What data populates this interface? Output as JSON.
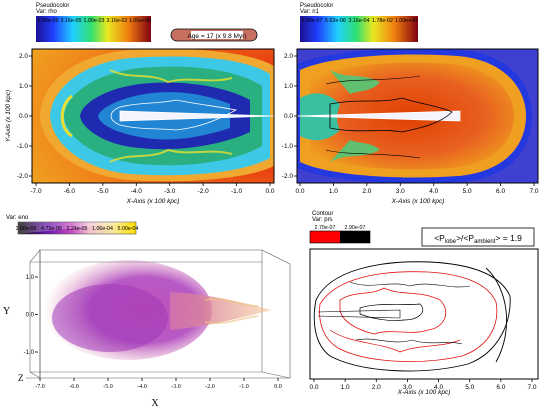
{
  "colorbars": {
    "rho": {
      "title": "Pseudocolor",
      "var": "Var: rho",
      "ticks": [
        "1.00e-06",
        "3.16e-05",
        "1.00e-03",
        "3.16e-02",
        "1.00e+00"
      ]
    },
    "n1": {
      "title": "Pseudocolor",
      "var": "Var: n1",
      "ticks": [
        "1.00e-07",
        "5.62e-06",
        "3.16e-04",
        "1.78e-02",
        "1.00e+00"
      ]
    },
    "eno": {
      "var": "Var: eno",
      "ticks": [
        "1.00e-06",
        "4.73e-06",
        "2.24e-05",
        "1.06e-04",
        "5.00e-04"
      ]
    },
    "prs": {
      "title": "Contour",
      "var": "Var: prs",
      "levels": [
        "2.70e-07",
        "2.90e-07"
      ],
      "colors": [
        "#ff0000",
        "#000000"
      ]
    }
  },
  "age_label": "Age = 17 (x 9.8 Myr)",
  "pressure_ratio": {
    "prefix": "<P",
    "lobe": "lobe",
    "mid": ">/<P",
    "ambient": "ambient",
    "suffix": "> = 1.9"
  },
  "colors": {
    "background_blue": "#4040d0",
    "ambient_orange": "#e07818",
    "contour_red": "#e01010",
    "contour_black": "#000000"
  },
  "chart_data": [
    {
      "type": "heatmap",
      "panel": "rho",
      "variable": "rho",
      "xlabel": "X-Axis (x 100 kpc)",
      "ylabel": "Y-Axis (x 100 kpc)",
      "xlim": [
        -7.0,
        0.0
      ],
      "ylim": [
        -2.0,
        2.0
      ],
      "xticks": [
        "-7.0",
        "-6.0",
        "-5.0",
        "-4.0",
        "-3.0",
        "-2.0",
        "-1.0",
        "0.0"
      ],
      "yticks": [
        "2.0",
        "1.0",
        "0.0",
        "-1.0",
        "-2.0"
      ],
      "scale": "log",
      "range": [
        1e-06,
        1.0
      ]
    },
    {
      "type": "heatmap",
      "panel": "n1",
      "variable": "n1",
      "xlabel": "X-Axis (x 100 kpc)",
      "xlim": [
        0.0,
        7.0
      ],
      "ylim": [
        -2.0,
        2.0
      ],
      "xticks": [
        "0.0",
        "1.0",
        "2.0",
        "3.0",
        "4.0",
        "5.0",
        "6.0",
        "7.0"
      ],
      "yticks": [
        "2.0",
        "1.0",
        "0.0",
        "-1.0",
        "-2.0"
      ],
      "scale": "log",
      "range": [
        1e-07,
        1.0
      ]
    },
    {
      "type": "heatmap",
      "panel": "eno-3d",
      "variable": "eno",
      "xlabel": "X",
      "ylabel": "Y",
      "zlabel": "Z",
      "xlim": [
        -7.0,
        0.0
      ],
      "ylim": [
        -1.0,
        1.0
      ],
      "xticks": [
        "-7.0",
        "-6.0",
        "-5.0",
        "-4.0",
        "-3.0",
        "-2.0",
        "-1.0",
        "0.0"
      ],
      "yticks": [
        "1.0",
        "0.0",
        "-1.0"
      ],
      "range": [
        1e-06,
        0.0005
      ]
    },
    {
      "type": "heatmap",
      "panel": "prs-contour",
      "variable": "prs",
      "xlabel": "X-Axis (x 100 kpc)",
      "xlim": [
        0.0,
        7.0
      ],
      "xticks": [
        "0.0",
        "1.0",
        "2.0",
        "3.0",
        "4.0",
        "5.0",
        "6.0",
        "7.0"
      ],
      "levels": [
        2.7e-07,
        2.9e-07
      ]
    }
  ]
}
